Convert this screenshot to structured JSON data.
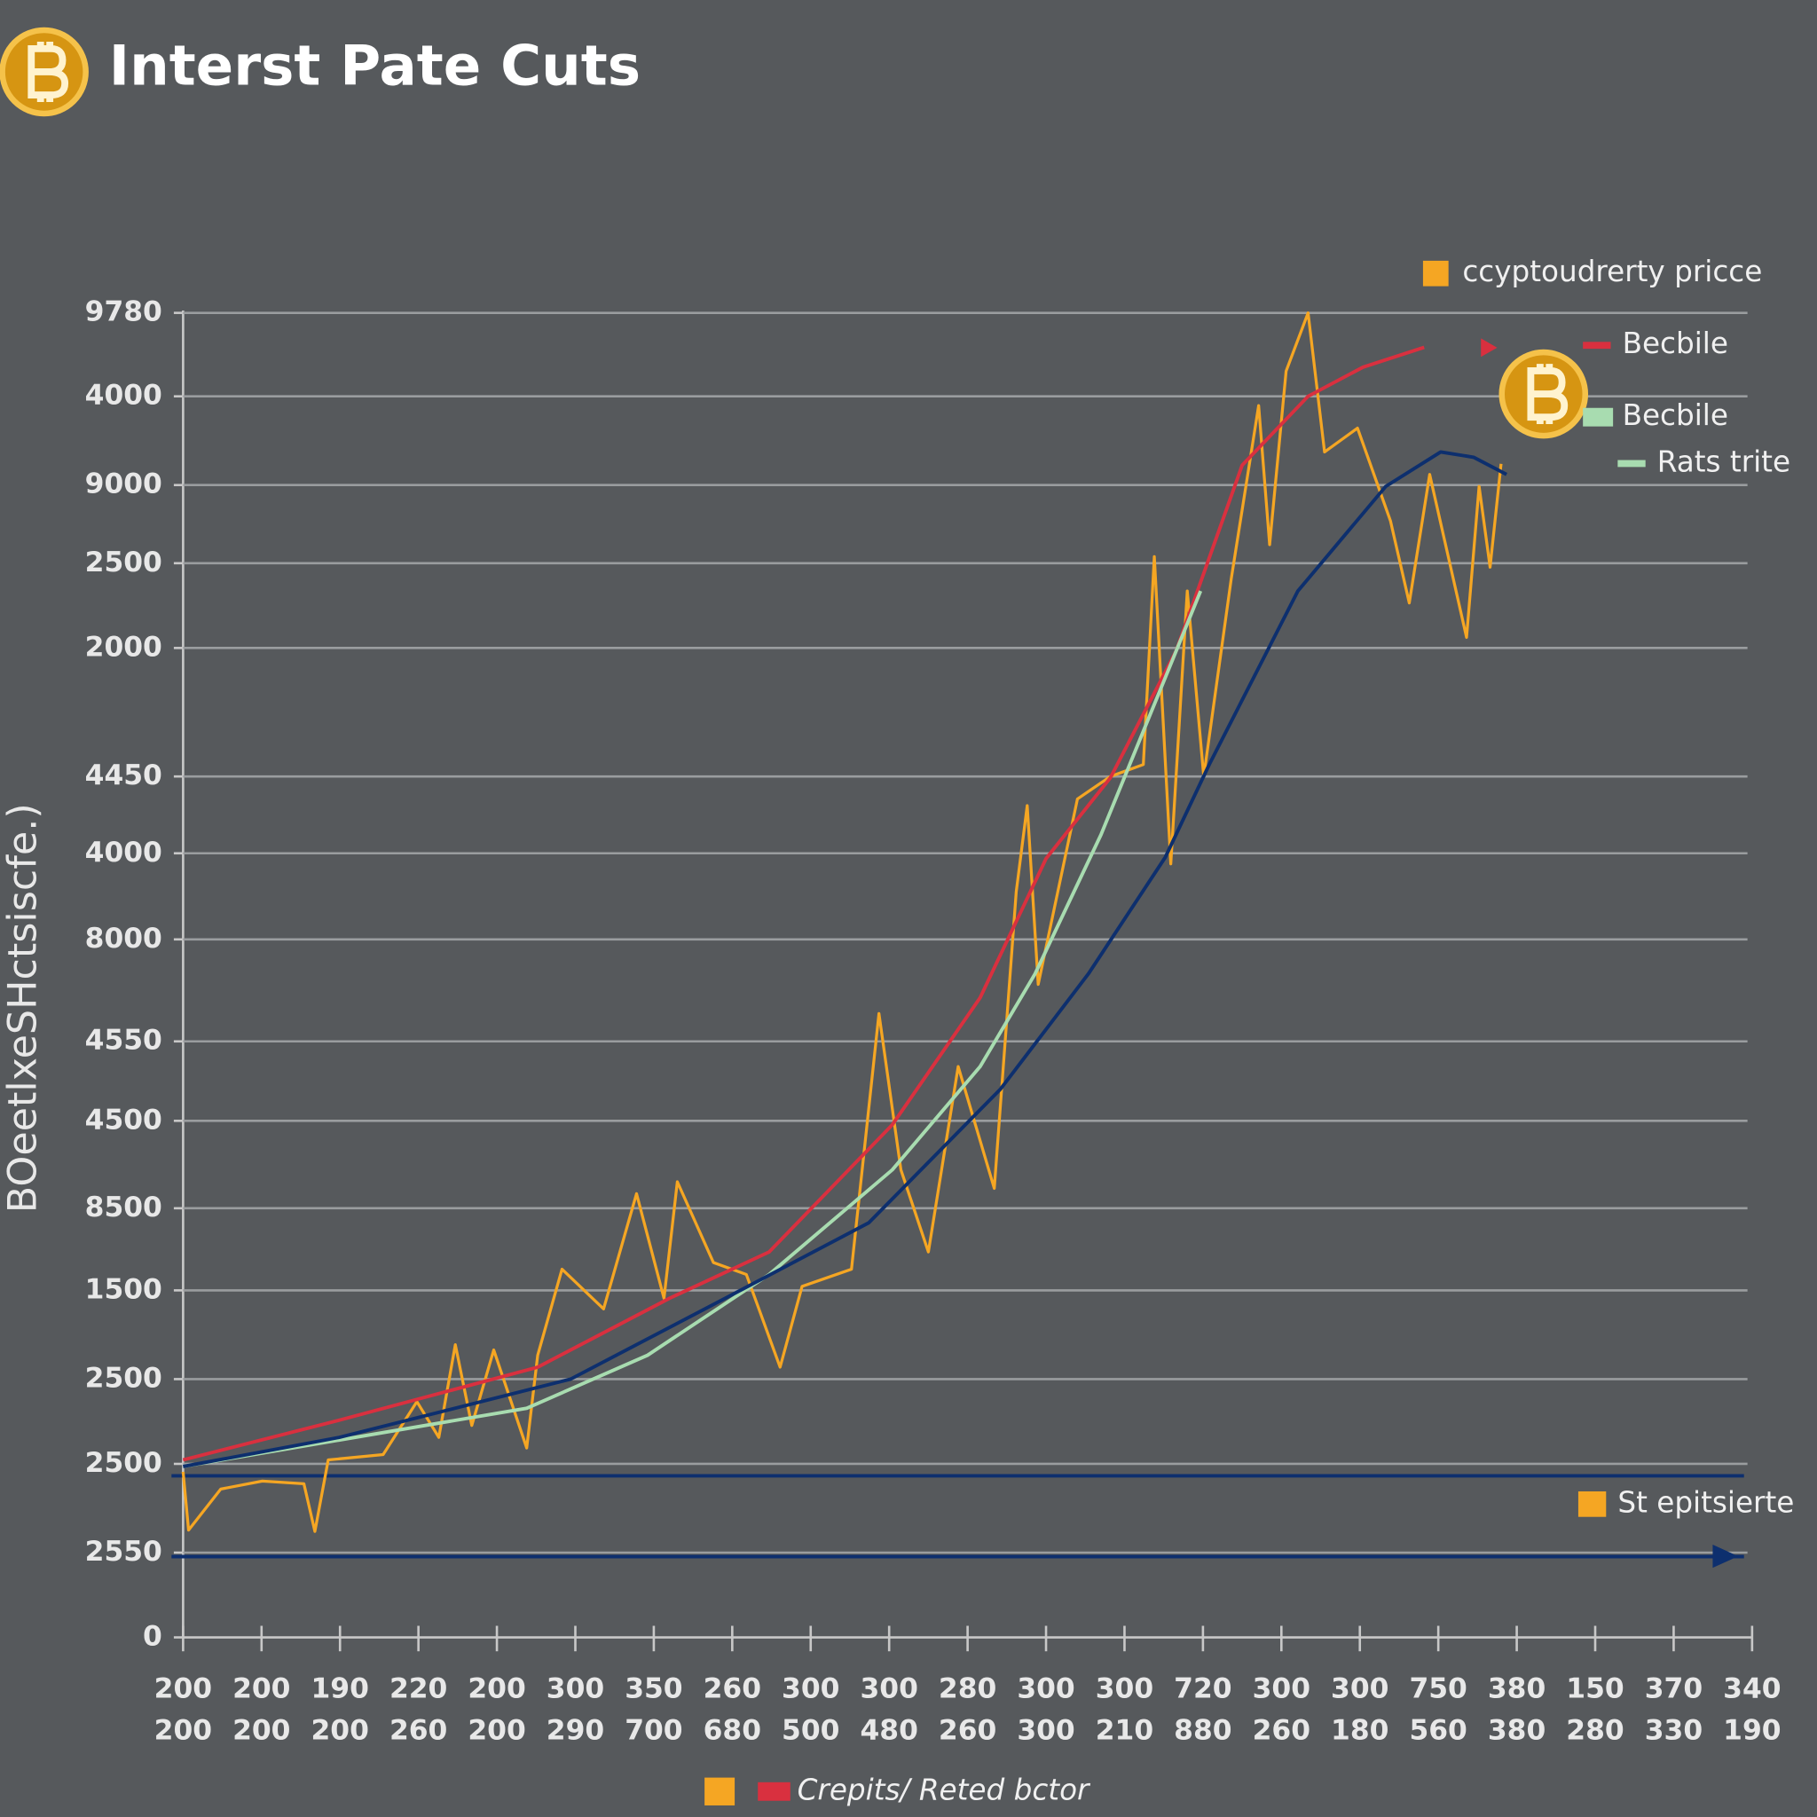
{
  "chart_data": {
    "type": "line",
    "title": "Interst Pate Cuts",
    "y_label": "BOeetlxeSHctsiscfe.)",
    "categories": [
      [
        "200",
        "200"
      ],
      [
        "200",
        "200"
      ],
      [
        "190",
        "200"
      ],
      [
        "220",
        "260"
      ],
      [
        "200",
        "200"
      ],
      [
        "300",
        "290"
      ],
      [
        "350",
        "700"
      ],
      [
        "260",
        "680"
      ],
      [
        "300",
        "500"
      ],
      [
        "300",
        "480"
      ],
      [
        "280",
        "260"
      ],
      [
        "300",
        "300"
      ],
      [
        "300",
        "210"
      ],
      [
        "720",
        "880"
      ],
      [
        "300",
        "260"
      ],
      [
        "300",
        "180"
      ],
      [
        "750",
        "560"
      ],
      [
        "380",
        "380"
      ],
      [
        "150",
        "280"
      ],
      [
        "370",
        "330"
      ],
      [
        "340",
        "190"
      ]
    ],
    "xlim": [
      0,
      20
    ],
    "ylim": [
      0,
      100
    ],
    "yticks": [
      {
        "value": 100,
        "label": "9780"
      },
      {
        "value": 93.7,
        "label": "4000"
      },
      {
        "value": 87.0,
        "label": "9000"
      },
      {
        "value": 81.1,
        "label": "2500"
      },
      {
        "value": 74.7,
        "label": "2000"
      },
      {
        "value": 65.0,
        "label": "4450"
      },
      {
        "value": 59.2,
        "label": "4000"
      },
      {
        "value": 52.7,
        "label": "8000"
      },
      {
        "value": 45.0,
        "label": "4550"
      },
      {
        "value": 39.0,
        "label": "4500"
      },
      {
        "value": 32.4,
        "label": "8500"
      },
      {
        "value": 26.2,
        "label": "1500"
      },
      {
        "value": 19.5,
        "label": "2500"
      },
      {
        "value": 13.1,
        "label": "2500"
      },
      {
        "value": 6.4,
        "label": "2550"
      },
      0
    ],
    "grid": true,
    "series": [
      {
        "name": "ccyptoudrerty pricce",
        "color": "#f5a623",
        "x": [
          0,
          0.07,
          0.48,
          1.01,
          1.54,
          1.68,
          1.85,
          2.55,
          2.98,
          3.26,
          3.47,
          3.68,
          3.96,
          4.38,
          4.52,
          4.83,
          5.36,
          5.78,
          6.13,
          6.3,
          6.76,
          7.18,
          7.61,
          7.89,
          8.52,
          8.87,
          9.15,
          9.5,
          9.88,
          10.34,
          10.62,
          10.76,
          10.9,
          11.4,
          11.82,
          12.24,
          12.38,
          12.59,
          12.8,
          13.01,
          13.36,
          13.71,
          13.85,
          14.06,
          14.34,
          14.55,
          14.97,
          15.39,
          15.63,
          15.89,
          16.36,
          16.52,
          16.66,
          16.8
        ],
        "values": [
          12.5,
          8.1,
          11.2,
          11.8,
          11.6,
          8.0,
          13.4,
          13.8,
          17.8,
          15.1,
          22.1,
          16.0,
          21.7,
          14.3,
          21.3,
          27.8,
          24.8,
          33.5,
          25.6,
          34.4,
          28.3,
          27.4,
          20.4,
          26.5,
          27.8,
          47.1,
          35.3,
          29.1,
          43.1,
          33.9,
          56.3,
          62.8,
          49.3,
          63.3,
          65.0,
          65.9,
          81.6,
          58.4,
          79.0,
          65.0,
          79.9,
          93.0,
          82.5,
          95.6,
          100,
          89.5,
          91.3,
          84.3,
          78.1,
          87.8,
          75.5,
          86.9,
          80.8,
          88.6
        ]
      },
      {
        "name": "Becbile",
        "color": "#d9303f",
        "x": [
          0,
          1.99,
          4.52,
          6.2,
          7.47,
          9.04,
          10.16,
          11.0,
          11.82,
          12.66,
          13.5,
          14.34,
          15.04,
          15.82
        ],
        "values": [
          13.4,
          16.4,
          20.4,
          25.6,
          29.1,
          38.7,
          48.3,
          58.8,
          64.9,
          74.5,
          88.5,
          93.7,
          95.9,
          97.4
        ]
      },
      {
        "name": "Rats trite",
        "color": "#a8dcb0",
        "x": [
          0,
          4.38,
          5.92,
          7.47,
          9.04,
          10.16,
          10.86,
          11.7,
          12.55,
          12.97
        ],
        "values": [
          12.9,
          17.3,
          21.3,
          27.4,
          35.3,
          43.1,
          50.1,
          60.6,
          72.9,
          79.0
        ]
      },
      {
        "color": "#0d2f6e",
        "x": [
          0,
          1.99,
          4.94,
          6.91,
          8.74,
          10.42,
          11.54,
          12.52,
          13.08,
          14.21,
          15.33,
          16.03,
          16.45,
          16.87
        ],
        "values": [
          12.9,
          15.1,
          19.5,
          25.6,
          31.3,
          41.4,
          50.1,
          58.9,
          65.9,
          79.0,
          86.9,
          89.5,
          89.1,
          87.8
        ]
      }
    ],
    "reference_lines": [
      {
        "value": 12.2,
        "color": "#0d2f6e"
      },
      {
        "value": 6.1,
        "color": "#0d2f6e"
      }
    ],
    "legend_extra": [
      {
        "label": "Becbile",
        "color": "#a8dcb0"
      },
      {
        "label": "St epitsierte",
        "color": "#f5a623"
      },
      {
        "label": "Crepits/ Reted bctor",
        "color": "#d9303f"
      }
    ]
  }
}
